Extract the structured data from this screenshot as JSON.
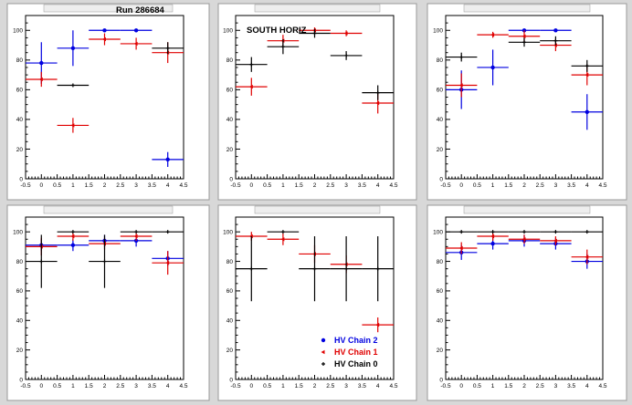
{
  "page": {
    "run_label": "Run 286684",
    "south_label": "SOUTH HORIZ"
  },
  "colors": {
    "background": "#d8d8d8",
    "pad": "#ffffff",
    "chain2": "#0000e0",
    "chain1": "#e00000",
    "chain0": "#000000"
  },
  "legend": {
    "entries": [
      {
        "label": "HV Chain 2",
        "color": "#0000e0",
        "marker": "circle"
      },
      {
        "label": "HV Chain 1",
        "color": "#e00000",
        "marker": "arrow"
      },
      {
        "label": "HV Chain 0",
        "color": "#000000",
        "marker": "cross"
      }
    ]
  },
  "chart_data": [
    {
      "type": "scatter",
      "title": "",
      "xlim": [
        -0.5,
        4.5
      ],
      "ylim": [
        0,
        110
      ],
      "x_ticks": [
        "-0.5",
        "0",
        "0.5",
        "1",
        "1.5",
        "2",
        "2.5",
        "3",
        "3.5",
        "4",
        "4.5"
      ],
      "y_ticks": [
        "0",
        "20",
        "40",
        "60",
        "80",
        "100"
      ],
      "series": [
        {
          "name": "HV Chain 2",
          "x": [
            0,
            1,
            2,
            3,
            4
          ],
          "y": [
            78,
            88,
            100,
            100,
            13
          ],
          "err": [
            14,
            12,
            0,
            0,
            5
          ]
        },
        {
          "name": "HV Chain 1",
          "x": [
            0,
            1,
            2,
            3,
            4
          ],
          "y": [
            67,
            36,
            94,
            91,
            85
          ],
          "err": [
            5,
            5,
            4,
            4,
            7
          ]
        },
        {
          "name": "HV Chain 0",
          "x": [
            0,
            1,
            2,
            3,
            4
          ],
          "y": [
            null,
            63,
            null,
            null,
            88
          ],
          "err": [
            0,
            0,
            0,
            0,
            4
          ]
        }
      ]
    },
    {
      "type": "scatter",
      "title": "",
      "xlim": [
        -0.5,
        4.5
      ],
      "ylim": [
        0,
        110
      ],
      "x_ticks": [
        "-0.5",
        "0",
        "0.5",
        "1",
        "1.5",
        "2",
        "2.5",
        "3",
        "3.5",
        "4",
        "4.5"
      ],
      "y_ticks": [
        "0",
        "20",
        "40",
        "60",
        "80",
        "100"
      ],
      "series": [
        {
          "name": "HV Chain 2",
          "x": [],
          "y": [],
          "err": []
        },
        {
          "name": "HV Chain 1",
          "x": [
            0,
            1,
            2,
            3,
            4
          ],
          "y": [
            62,
            93,
            100,
            98,
            51
          ],
          "err": [
            6,
            4,
            2,
            2,
            7
          ]
        },
        {
          "name": "HV Chain 0",
          "x": [
            0,
            1,
            2,
            3,
            4
          ],
          "y": [
            77,
            89,
            98,
            83,
            58
          ],
          "err": [
            5,
            5,
            3,
            3,
            5
          ]
        }
      ]
    },
    {
      "type": "scatter",
      "title": "",
      "xlim": [
        -0.5,
        4.5
      ],
      "ylim": [
        0,
        110
      ],
      "x_ticks": [
        "-0.5",
        "0",
        "0.5",
        "1",
        "1.5",
        "2",
        "2.5",
        "3",
        "3.5",
        "4",
        "4.5"
      ],
      "y_ticks": [
        "0",
        "20",
        "40",
        "60",
        "80",
        "100"
      ],
      "series": [
        {
          "name": "HV Chain 2",
          "x": [
            0,
            1,
            2,
            3,
            4
          ],
          "y": [
            60,
            75,
            100,
            100,
            45
          ],
          "err": [
            13,
            12,
            0,
            0,
            12
          ]
        },
        {
          "name": "HV Chain 1",
          "x": [
            0,
            1,
            2,
            3,
            4
          ],
          "y": [
            63,
            97,
            96,
            90,
            70
          ],
          "err": [
            8,
            2,
            4,
            4,
            7
          ]
        },
        {
          "name": "HV Chain 0",
          "x": [
            0,
            1,
            2,
            3,
            4
          ],
          "y": [
            82,
            null,
            92,
            93,
            76
          ],
          "err": [
            3,
            0,
            3,
            3,
            4
          ]
        }
      ]
    },
    {
      "type": "scatter",
      "title": "",
      "xlim": [
        -0.5,
        4.5
      ],
      "ylim": [
        0,
        110
      ],
      "x_ticks": [
        "-0.5",
        "0",
        "0.5",
        "1",
        "1.5",
        "2",
        "2.5",
        "3",
        "3.5",
        "4",
        "4.5"
      ],
      "y_ticks": [
        "0",
        "20",
        "40",
        "60",
        "80",
        "100"
      ],
      "series": [
        {
          "name": "HV Chain 2",
          "x": [
            0,
            1,
            2,
            3,
            4
          ],
          "y": [
            91,
            91,
            94,
            94,
            82
          ],
          "err": [
            4,
            4,
            4,
            4,
            5
          ]
        },
        {
          "name": "HV Chain 1",
          "x": [
            0,
            1,
            2,
            3,
            4
          ],
          "y": [
            90,
            97,
            92,
            97,
            79
          ],
          "err": [
            6,
            3,
            4,
            3,
            8
          ]
        },
        {
          "name": "HV Chain 0",
          "x": [
            0,
            1,
            2,
            3,
            4
          ],
          "y": [
            80,
            100,
            80,
            100,
            100
          ],
          "err": [
            18,
            0,
            18,
            0,
            0
          ]
        }
      ]
    },
    {
      "type": "scatter",
      "title": "",
      "xlim": [
        -0.5,
        4.5
      ],
      "ylim": [
        0,
        110
      ],
      "x_ticks": [
        "-0.5",
        "0",
        "0.5",
        "1",
        "1.5",
        "2",
        "2.5",
        "3",
        "3.5",
        "4",
        "4.5"
      ],
      "y_ticks": [
        "0",
        "20",
        "40",
        "60",
        "80",
        "100"
      ],
      "series": [
        {
          "name": "HV Chain 2",
          "x": [],
          "y": [],
          "err": []
        },
        {
          "name": "HV Chain 1",
          "x": [
            0,
            1,
            2,
            3,
            4
          ],
          "y": [
            97,
            95,
            85,
            78,
            37
          ],
          "err": [
            3,
            4,
            6,
            6,
            5
          ]
        },
        {
          "name": "HV Chain 0",
          "x": [
            0,
            1,
            2,
            3,
            4
          ],
          "y": [
            75,
            100,
            75,
            75,
            75
          ],
          "err": [
            22,
            0,
            22,
            22,
            22
          ]
        }
      ]
    },
    {
      "type": "scatter",
      "title": "",
      "xlim": [
        -0.5,
        4.5
      ],
      "ylim": [
        0,
        110
      ],
      "x_ticks": [
        "-0.5",
        "0",
        "0.5",
        "1",
        "1.5",
        "2",
        "2.5",
        "3",
        "3.5",
        "4",
        "4.5"
      ],
      "y_ticks": [
        "0",
        "20",
        "40",
        "60",
        "80",
        "100"
      ],
      "series": [
        {
          "name": "HV Chain 2",
          "x": [
            0,
            1,
            2,
            3,
            4
          ],
          "y": [
            86,
            92,
            94,
            92,
            80
          ],
          "err": [
            5,
            4,
            4,
            4,
            5
          ]
        },
        {
          "name": "HV Chain 1",
          "x": [
            0,
            1,
            2,
            3,
            4
          ],
          "y": [
            89,
            97,
            95,
            94,
            83
          ],
          "err": [
            4,
            3,
            3,
            3,
            5
          ]
        },
        {
          "name": "HV Chain 0",
          "x": [
            0,
            1,
            2,
            3,
            4
          ],
          "y": [
            100,
            100,
            100,
            100,
            100
          ],
          "err": [
            0,
            0,
            0,
            0,
            0
          ]
        }
      ]
    }
  ]
}
